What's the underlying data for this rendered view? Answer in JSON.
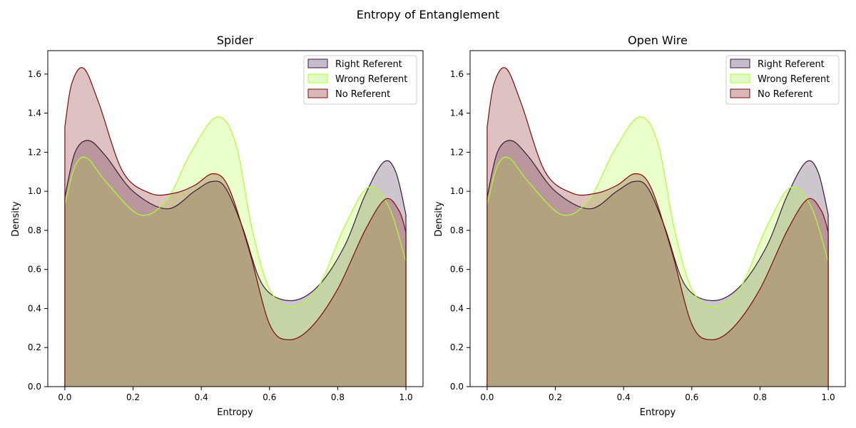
{
  "figure": {
    "title": "Entropy of Entanglement"
  },
  "chart_data": [
    {
      "type": "area",
      "title": "Spider",
      "xlabel": "Entropy",
      "ylabel": "Density",
      "xlim": [
        -0.05,
        1.05
      ],
      "ylim": [
        0,
        1.72
      ],
      "xticks": [
        0.0,
        0.2,
        0.4,
        0.6,
        0.8,
        1.0
      ],
      "xtick_labels": [
        "0.0",
        "0.2",
        "0.4",
        "0.6",
        "0.8",
        "1.0"
      ],
      "yticks": [
        0.0,
        0.2,
        0.4,
        0.6,
        0.8,
        1.0,
        1.2,
        1.4,
        1.6
      ],
      "ytick_labels": [
        "0.0",
        "0.2",
        "0.4",
        "0.6",
        "0.8",
        "1.0",
        "1.2",
        "1.4",
        "1.6"
      ],
      "grid": false,
      "legend_position": "top-right",
      "series": [
        {
          "name": "Right Referent",
          "line_color": "#3b1a3b",
          "fill_color": "#c7bccb",
          "x": [
            0.0,
            0.03,
            0.07,
            0.12,
            0.2,
            0.3,
            0.38,
            0.43,
            0.47,
            0.52,
            0.58,
            0.66,
            0.74,
            0.82,
            0.88,
            0.935,
            0.97,
            1.0
          ],
          "y": [
            0.97,
            1.2,
            1.26,
            1.18,
            1.0,
            0.91,
            1.0,
            1.05,
            1.02,
            0.82,
            0.52,
            0.44,
            0.51,
            0.72,
            0.98,
            1.15,
            1.1,
            0.88
          ]
        },
        {
          "name": "Wrong Referent",
          "line_color": "#adff2f",
          "fill_color": "#e1fbc8",
          "x": [
            0.0,
            0.03,
            0.065,
            0.12,
            0.22,
            0.3,
            0.37,
            0.445,
            0.5,
            0.55,
            0.6,
            0.66,
            0.74,
            0.82,
            0.89,
            0.95,
            1.0
          ],
          "y": [
            0.93,
            1.13,
            1.17,
            1.05,
            0.88,
            0.96,
            1.2,
            1.38,
            1.25,
            0.8,
            0.5,
            0.41,
            0.5,
            0.82,
            1.02,
            0.92,
            0.64
          ]
        },
        {
          "name": "No Referent",
          "line_color": "#7b0c0c",
          "fill_color": "#d9b8b8",
          "x": [
            0.0,
            0.02,
            0.055,
            0.1,
            0.17,
            0.25,
            0.32,
            0.38,
            0.435,
            0.48,
            0.54,
            0.6,
            0.655,
            0.72,
            0.8,
            0.88,
            0.94,
            0.98,
            1.0
          ],
          "y": [
            1.33,
            1.55,
            1.63,
            1.45,
            1.1,
            0.99,
            0.99,
            1.03,
            1.09,
            1.02,
            0.7,
            0.32,
            0.24,
            0.3,
            0.5,
            0.8,
            0.96,
            0.9,
            0.79
          ]
        }
      ]
    },
    {
      "type": "area",
      "title": "Open Wire",
      "xlabel": "Entropy",
      "ylabel": "Density",
      "xlim": [
        -0.05,
        1.05
      ],
      "ylim": [
        0,
        1.72
      ],
      "xticks": [
        0.0,
        0.2,
        0.4,
        0.6,
        0.8,
        1.0
      ],
      "xtick_labels": [
        "0.0",
        "0.2",
        "0.4",
        "0.6",
        "0.8",
        "1.0"
      ],
      "yticks": [
        0.0,
        0.2,
        0.4,
        0.6,
        0.8,
        1.0,
        1.2,
        1.4,
        1.6
      ],
      "ytick_labels": [
        "0.0",
        "0.2",
        "0.4",
        "0.6",
        "0.8",
        "1.0",
        "1.2",
        "1.4",
        "1.6"
      ],
      "grid": false,
      "legend_position": "top-right",
      "series": [
        {
          "name": "Right Referent",
          "line_color": "#3b1a3b",
          "fill_color": "#c7bccb",
          "x": [
            0.0,
            0.03,
            0.07,
            0.12,
            0.2,
            0.3,
            0.38,
            0.43,
            0.47,
            0.52,
            0.58,
            0.66,
            0.74,
            0.82,
            0.88,
            0.935,
            0.97,
            1.0
          ],
          "y": [
            0.97,
            1.2,
            1.26,
            1.18,
            1.0,
            0.91,
            1.0,
            1.05,
            1.02,
            0.82,
            0.52,
            0.44,
            0.51,
            0.72,
            0.98,
            1.15,
            1.1,
            0.88
          ]
        },
        {
          "name": "Wrong Referent",
          "line_color": "#adff2f",
          "fill_color": "#e1fbc8",
          "x": [
            0.0,
            0.03,
            0.065,
            0.12,
            0.22,
            0.3,
            0.37,
            0.445,
            0.5,
            0.55,
            0.6,
            0.66,
            0.74,
            0.82,
            0.89,
            0.95,
            1.0
          ],
          "y": [
            0.93,
            1.13,
            1.17,
            1.05,
            0.88,
            0.96,
            1.2,
            1.38,
            1.25,
            0.8,
            0.5,
            0.41,
            0.5,
            0.82,
            1.02,
            0.92,
            0.64
          ]
        },
        {
          "name": "No Referent",
          "line_color": "#7b0c0c",
          "fill_color": "#d9b8b8",
          "x": [
            0.0,
            0.02,
            0.055,
            0.1,
            0.17,
            0.25,
            0.32,
            0.38,
            0.435,
            0.48,
            0.54,
            0.6,
            0.655,
            0.72,
            0.8,
            0.88,
            0.94,
            0.98,
            1.0
          ],
          "y": [
            1.33,
            1.55,
            1.63,
            1.45,
            1.1,
            0.99,
            0.99,
            1.03,
            1.09,
            1.02,
            0.7,
            0.32,
            0.24,
            0.3,
            0.5,
            0.8,
            0.96,
            0.9,
            0.79
          ]
        }
      ]
    }
  ]
}
